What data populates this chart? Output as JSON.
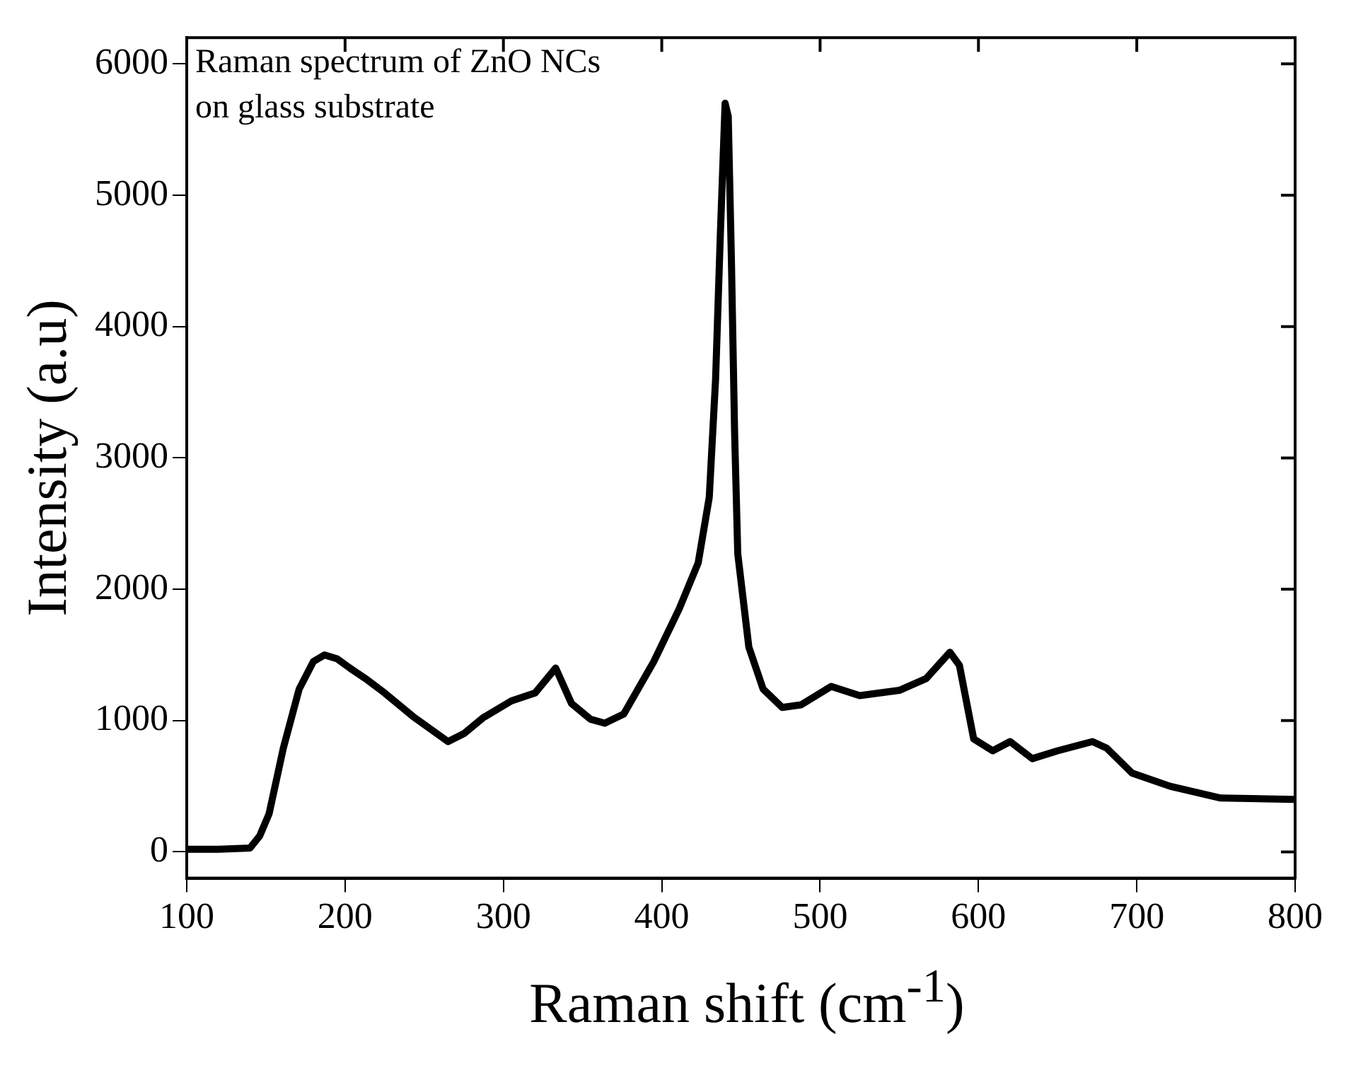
{
  "chart_data": {
    "type": "line",
    "xlabel": "Raman shift (cm$^{-1}$)",
    "ylabel": "Intensity (a.u)",
    "annotations": [
      "Raman spectrum of ZnO NCs",
      "on glass substrate"
    ],
    "xlim": [
      100,
      800
    ],
    "xticks": [
      100,
      200,
      300,
      400,
      500,
      600,
      700,
      800
    ],
    "ylim": [
      -200,
      6200
    ],
    "yticks": [
      0,
      1000,
      2000,
      3000,
      4000,
      5000,
      6000
    ],
    "grid": false,
    "legend": false,
    "marker": "none",
    "line_style": "solid",
    "series": [
      {
        "color": "#000000",
        "x": [
          100,
          120,
          140,
          146,
          152,
          161,
          171,
          180,
          187,
          195,
          203,
          214,
          225,
          243,
          265,
          275,
          287,
          305,
          320,
          333,
          343,
          355,
          364,
          376,
          395,
          411,
          423,
          430,
          434,
          437,
          440,
          442,
          444,
          446,
          448,
          455,
          464,
          476,
          488,
          507,
          525,
          550,
          567,
          582,
          588,
          597,
          609,
          620,
          634,
          650,
          672,
          681,
          697,
          721,
          753,
          800
        ],
        "values": [
          20,
          20,
          30,
          120,
          290,
          790,
          1240,
          1450,
          1500,
          1470,
          1400,
          1310,
          1210,
          1030,
          840,
          900,
          1020,
          1150,
          1210,
          1400,
          1130,
          1010,
          980,
          1050,
          1450,
          1850,
          2200,
          2700,
          3600,
          4700,
          5700,
          5600,
          4500,
          3200,
          2270,
          1560,
          1240,
          1100,
          1120,
          1260,
          1190,
          1230,
          1320,
          1520,
          1420,
          860,
          770,
          840,
          710,
          770,
          840,
          790,
          600,
          500,
          410,
          400
        ]
      }
    ]
  }
}
